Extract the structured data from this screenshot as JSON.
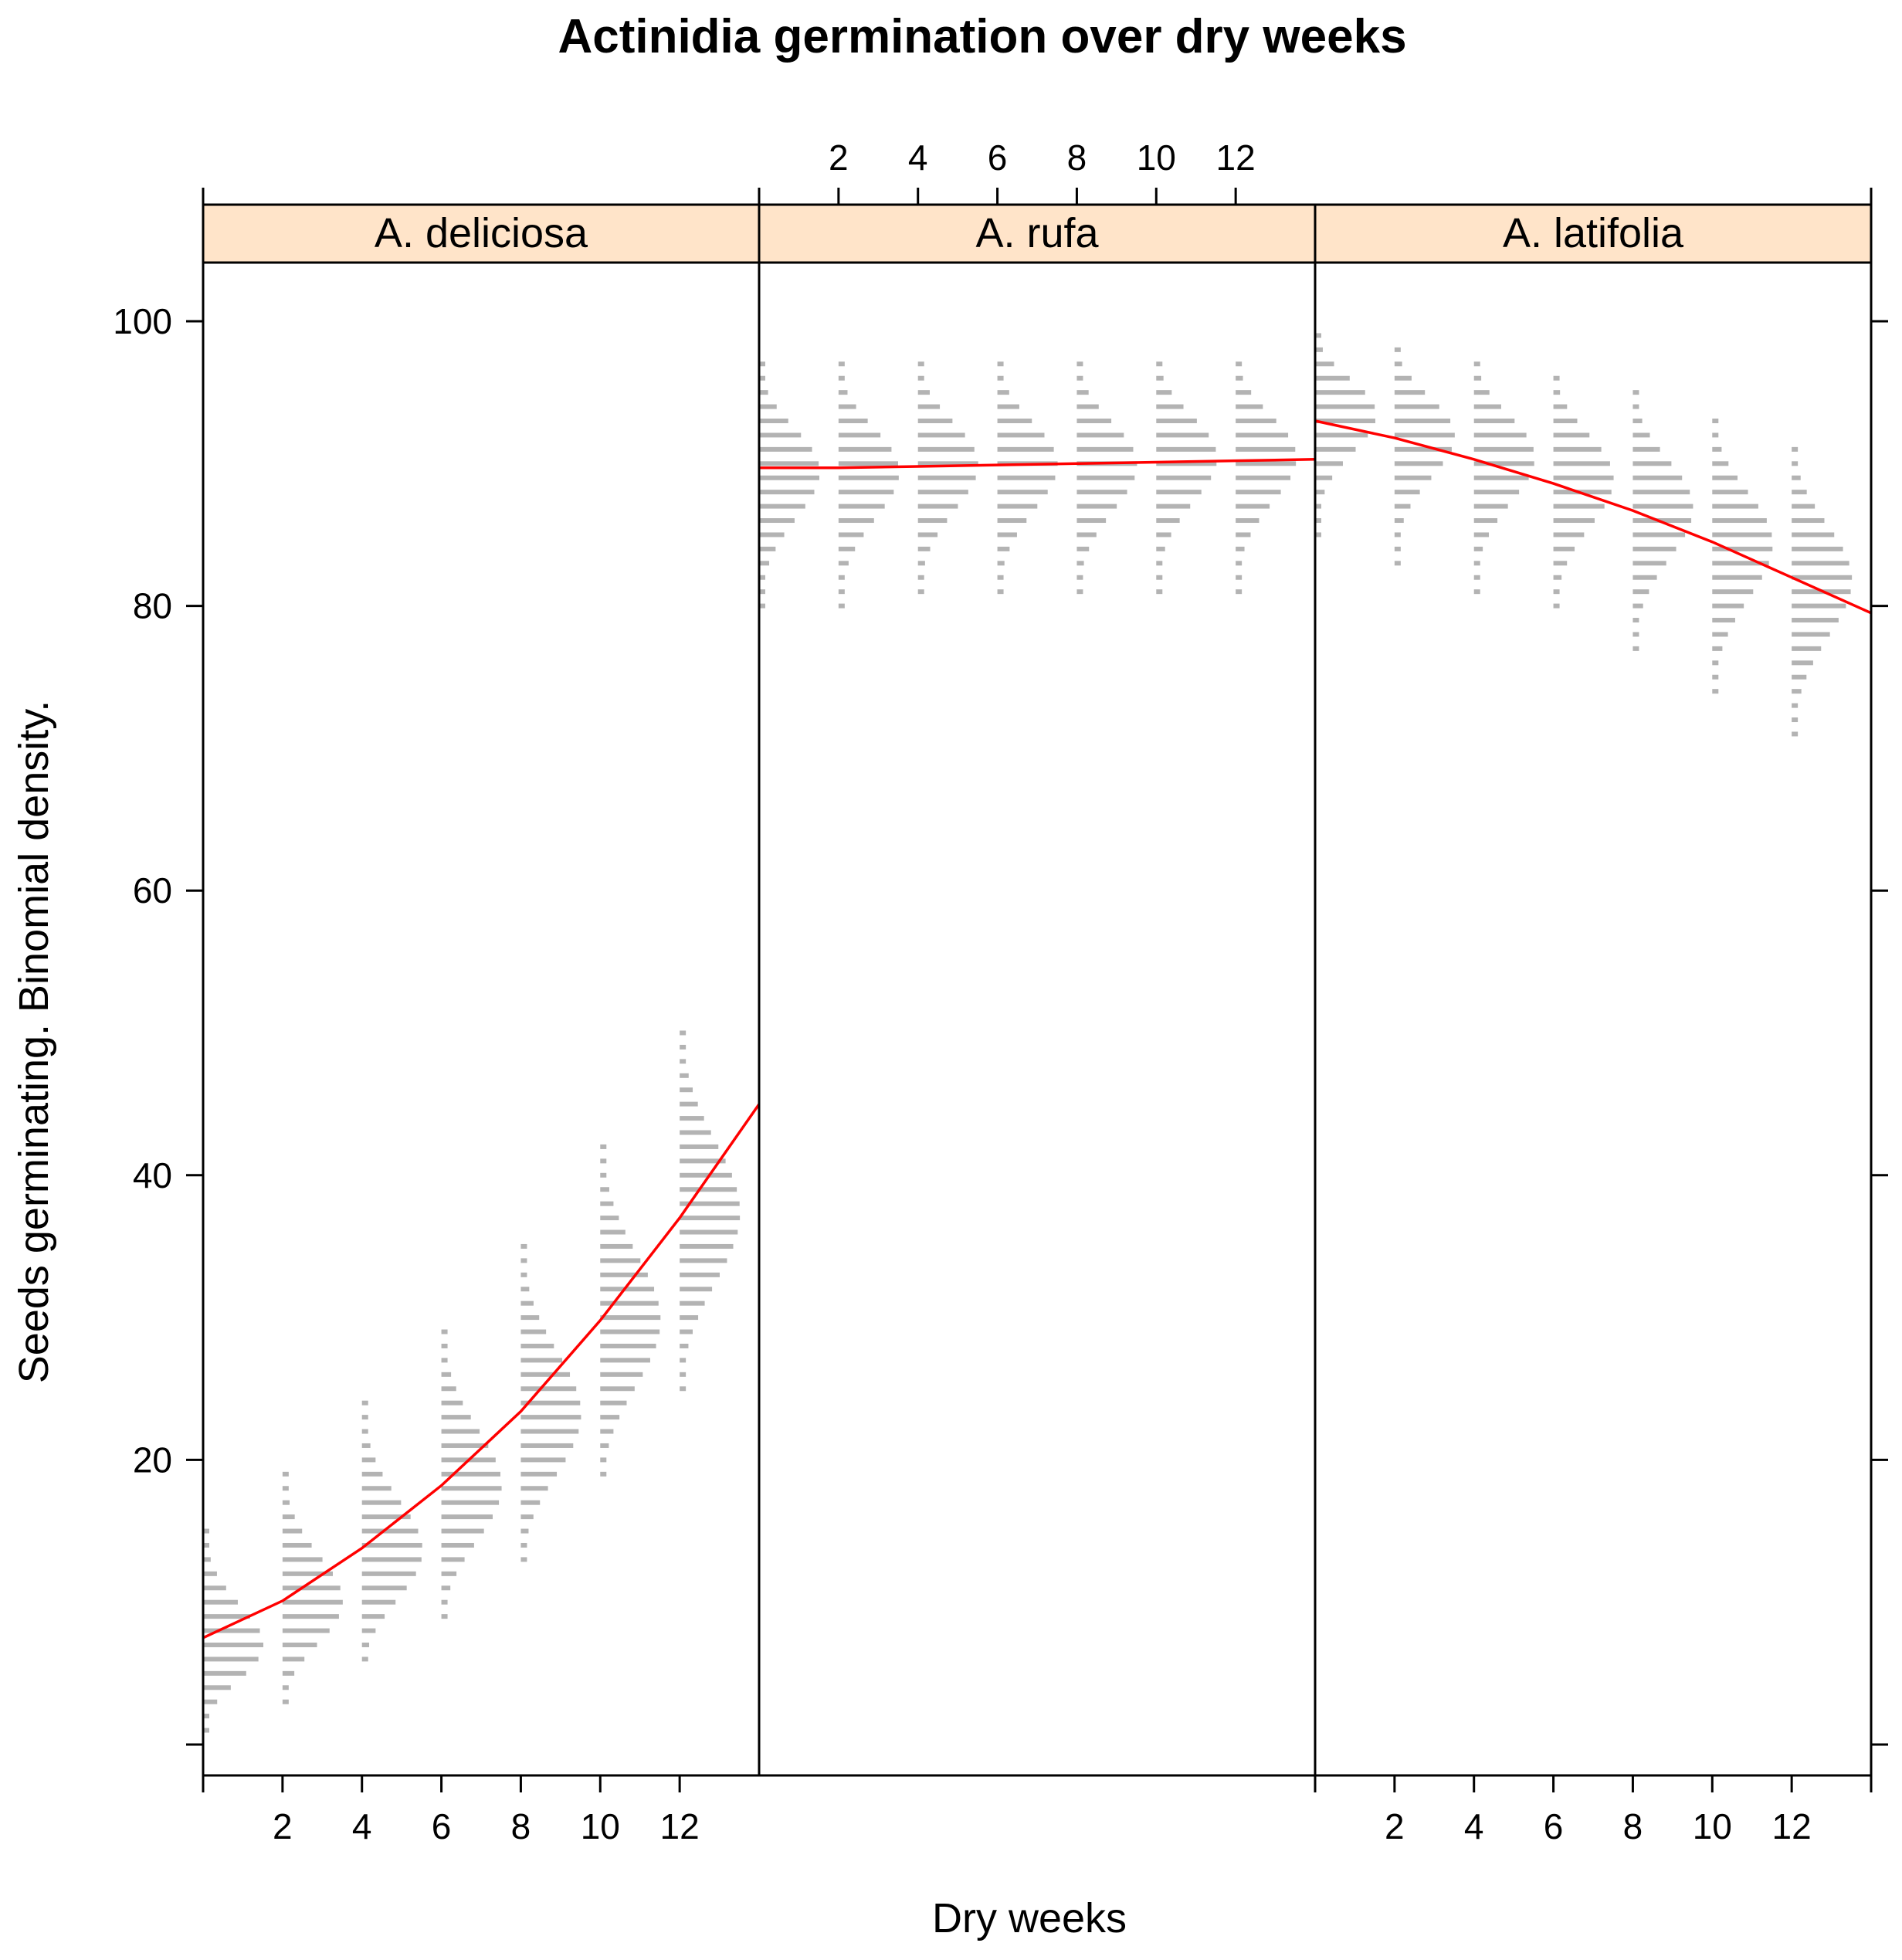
{
  "chart_data": {
    "type": "scatter",
    "title": "Actinidia germination over dry weeks",
    "xlabel": "Dry weeks",
    "ylabel": "Seeds germinating.  Binomial density.",
    "xlim": [
      0,
      14
    ],
    "ylim": [
      -2,
      104
    ],
    "x_ticks": [
      2,
      4,
      6,
      8,
      10,
      12
    ],
    "x_tick_labels": [
      "2",
      "4",
      "6",
      "8",
      "10",
      "12"
    ],
    "y_ticks": [
      0,
      20,
      40,
      60,
      80,
      100
    ],
    "y_tick_labels": [
      "",
      "20",
      "40",
      "60",
      "80",
      "100"
    ],
    "grid": false,
    "colors": {
      "strip": "#ffe4c9",
      "density_bars": "#b3b3b3",
      "fit_line": "#ff0000",
      "axis": "#000000"
    },
    "panels": [
      {
        "name": "A. deliciosa",
        "density_groups": [
          {
            "week": 0,
            "p": 0.075
          },
          {
            "week": 2,
            "p": 0.105
          },
          {
            "week": 4,
            "p": 0.14
          },
          {
            "week": 6,
            "p": 0.185
          },
          {
            "week": 8,
            "p": 0.235
          },
          {
            "week": 10,
            "p": 0.3
          },
          {
            "week": 12,
            "p": 0.375
          }
        ],
        "fit": [
          [
            0,
            7.5
          ],
          [
            2,
            10.1
          ],
          [
            4,
            13.8
          ],
          [
            6,
            18.2
          ],
          [
            8,
            23.4
          ],
          [
            10,
            29.8
          ],
          [
            12,
            37.0
          ],
          [
            14,
            45.0
          ]
        ]
      },
      {
        "name": "A. rufa",
        "density_groups": [
          {
            "week": 0,
            "p": 0.89
          },
          {
            "week": 2,
            "p": 0.89
          },
          {
            "week": 4,
            "p": 0.895
          },
          {
            "week": 6,
            "p": 0.895
          },
          {
            "week": 8,
            "p": 0.895
          },
          {
            "week": 10,
            "p": 0.9
          },
          {
            "week": 12,
            "p": 0.9
          }
        ],
        "fit": [
          [
            0,
            89.7
          ],
          [
            2,
            89.7
          ],
          [
            4,
            89.8
          ],
          [
            6,
            89.9
          ],
          [
            8,
            90.0
          ],
          [
            10,
            90.1
          ],
          [
            12,
            90.2
          ],
          [
            14,
            90.3
          ]
        ]
      },
      {
        "name": "A. latifolia",
        "density_groups": [
          {
            "week": 0,
            "p": 0.93
          },
          {
            "week": 2,
            "p": 0.915
          },
          {
            "week": 4,
            "p": 0.9
          },
          {
            "week": 6,
            "p": 0.885
          },
          {
            "week": 8,
            "p": 0.865
          },
          {
            "week": 10,
            "p": 0.84
          },
          {
            "week": 12,
            "p": 0.815
          }
        ],
        "fit": [
          [
            0,
            93.0
          ],
          [
            2,
            91.8
          ],
          [
            4,
            90.3
          ],
          [
            6,
            88.6
          ],
          [
            8,
            86.7
          ],
          [
            10,
            84.5
          ],
          [
            12,
            82.0
          ],
          [
            14,
            79.5
          ]
        ]
      }
    ]
  }
}
